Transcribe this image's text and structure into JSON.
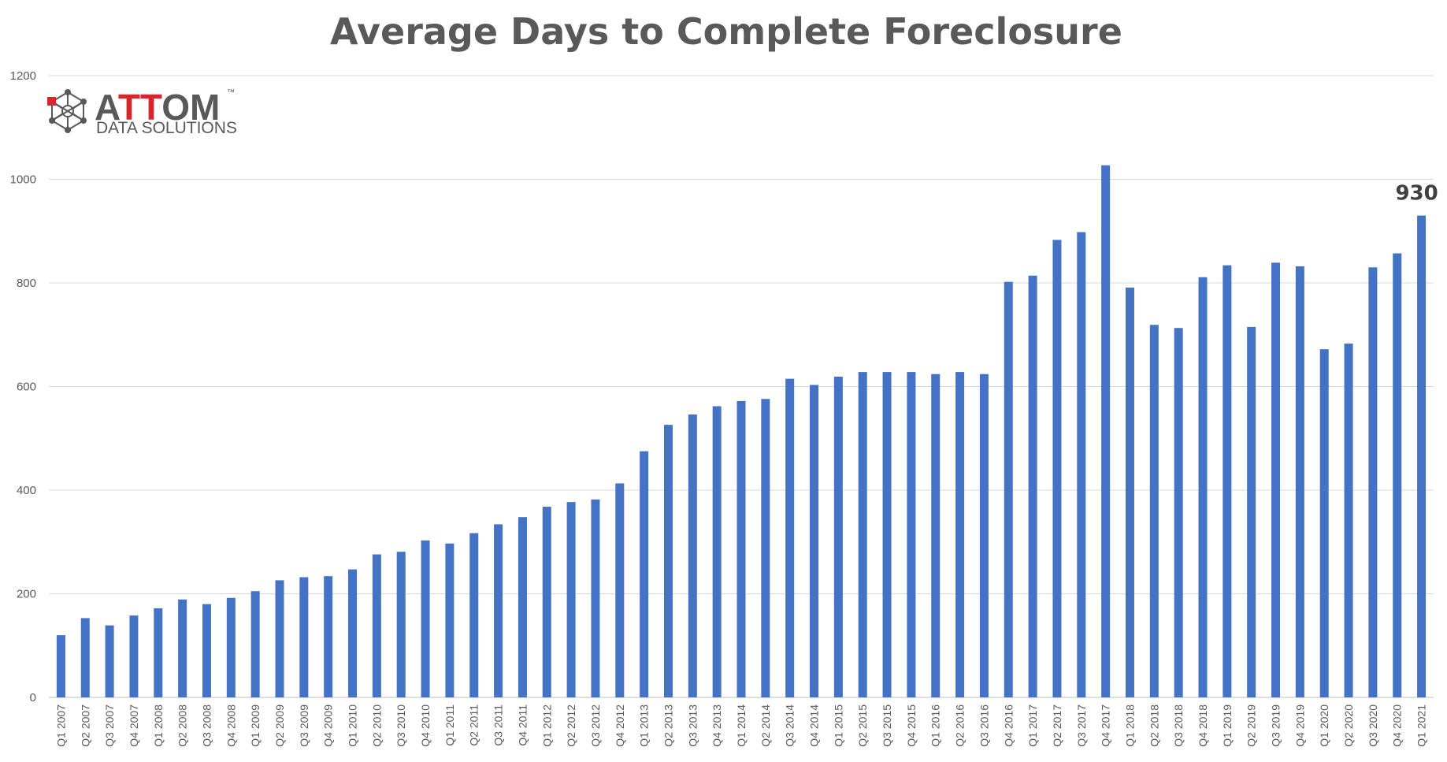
{
  "logo": {
    "letters": [
      "A",
      "T",
      "T",
      "OM"
    ],
    "subtitle": "DATA SOLUTIONS",
    "trademark": "™",
    "red_color": "#d9262b",
    "gray_color": "#595959"
  },
  "colors": {
    "bar": "#4472c4",
    "grid": "#d9d9d9",
    "text": "#595959"
  },
  "chart_data": {
    "type": "bar",
    "title": "Average Days to Complete Foreclosure",
    "xlabel": "",
    "ylabel": "",
    "ylim": [
      0,
      1200
    ],
    "yticks": [
      0,
      200,
      400,
      600,
      800,
      1000,
      1200
    ],
    "grid": true,
    "categories": [
      "Q1 2007",
      "Q2 2007",
      "Q3 2007",
      "Q4 2007",
      "Q1 2008",
      "Q2 2008",
      "Q3 2008",
      "Q4 2008",
      "Q1 2009",
      "Q2 2009",
      "Q3 2009",
      "Q4 2009",
      "Q1 2010",
      "Q2 2010",
      "Q3 2010",
      "Q4 2010",
      "Q1 2011",
      "Q2 2011",
      "Q3 2011",
      "Q4 2011",
      "Q1 2012",
      "Q2 2012",
      "Q3 2012",
      "Q4 2012",
      "Q1 2013",
      "Q2 2013",
      "Q3 2013",
      "Q4 2013",
      "Q1 2014",
      "Q2 2014",
      "Q3 2014",
      "Q4 2014",
      "Q1 2015",
      "Q2 2015",
      "Q3 2015",
      "Q4 2015",
      "Q1 2016",
      "Q2 2016",
      "Q3 2016",
      "Q4 2016",
      "Q1 2017",
      "Q2 2017",
      "Q3 2017",
      "Q4 2017",
      "Q1 2018",
      "Q2 2018",
      "Q3 2018",
      "Q4 2018",
      "Q1 2019",
      "Q2 2019",
      "Q3 2019",
      "Q4 2019",
      "Q1 2020",
      "Q2 2020",
      "Q3 2020",
      "Q4 2020",
      "Q1 2021"
    ],
    "values": [
      120,
      153,
      139,
      158,
      172,
      189,
      180,
      192,
      205,
      226,
      232,
      234,
      247,
      276,
      281,
      303,
      297,
      317,
      334,
      348,
      368,
      377,
      382,
      413,
      475,
      526,
      546,
      562,
      572,
      576,
      615,
      603,
      619,
      628,
      628,
      628,
      624,
      628,
      624,
      802,
      814,
      883,
      898,
      1027,
      791,
      719,
      713,
      811,
      834,
      715,
      839,
      832,
      672,
      683,
      830,
      857,
      930
    ],
    "data_labels": [
      {
        "category": "Q1 2021",
        "text": "930"
      }
    ]
  }
}
